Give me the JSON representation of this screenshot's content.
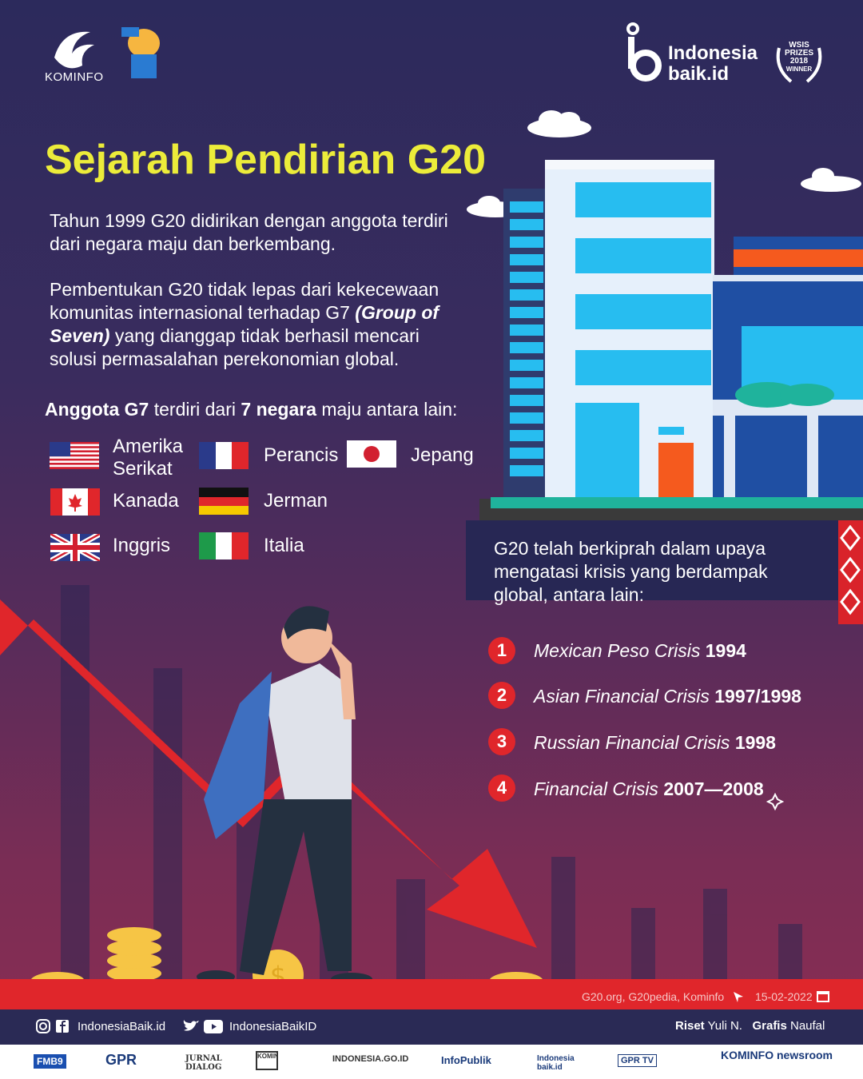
{
  "header": {
    "kominfo_label": "KOMINFO",
    "brand_line1": "Indonesia",
    "brand_line2": "baik.id",
    "award_line1": "WSIS",
    "award_line2": "PRIZES",
    "award_line3": "2018",
    "award_line4": "WINNER"
  },
  "title": "Sejarah Pendirian G20",
  "paragraphs": {
    "p1": "Tahun 1999 G20 didirikan dengan anggota terdiri dari negara maju dan berkembang.",
    "p2_a": "Pembentukan G20 tidak lepas dari kekecewaan komunitas internasional terhadap G7 ",
    "p2_b": "(Group of Seven)",
    "p2_c": " yang dianggap tidak berhasil mencari solusi permasalahan perekonomian global."
  },
  "g7": {
    "intro_bold1": "Anggota G7",
    "intro_mid": " terdiri dari ",
    "intro_bold2": "7 negara",
    "intro_end": " maju antara lain:",
    "countries": [
      "Amerika Serikat",
      "Perancis",
      "Jepang",
      "Kanada",
      "Jerman",
      "Inggris",
      "Italia"
    ]
  },
  "crises": {
    "intro": "G20 telah berkiprah dalam upaya mengatasi krisis yang berdampak global, antara lain:",
    "items": [
      {
        "num": "1",
        "name": "Mexican Peso Crisis",
        "year": "1994"
      },
      {
        "num": "2",
        "name": "Asian Financial Crisis",
        "year": "1997/1998"
      },
      {
        "num": "3",
        "name": "Russian Financial Crisis",
        "year": "1998"
      },
      {
        "num": "4",
        "name": "Financial Crisis",
        "year": "2007—2008"
      }
    ]
  },
  "footer": {
    "source": "G20.org, G20pedia, Kominfo",
    "date": "15-02-2022",
    "social1": "IndonesiaBaik.id",
    "social2": "IndonesiaBaikID",
    "riset_label": "Riset",
    "riset_name": "Yuli N.",
    "grafis_label": "Grafis",
    "grafis_name": "Naufal",
    "partners": [
      "FMB9",
      "GPR",
      "JURNAL DIALOG",
      "KOMINFO",
      "INDONESIA.GO.ID",
      "InfoPublik",
      "Indonesia baik.id",
      "GPR TV",
      "KOMINFO newsroom"
    ]
  },
  "colors": {
    "title": "#ecec3a",
    "accent_red": "#e0262b",
    "info_box": "#272754"
  }
}
